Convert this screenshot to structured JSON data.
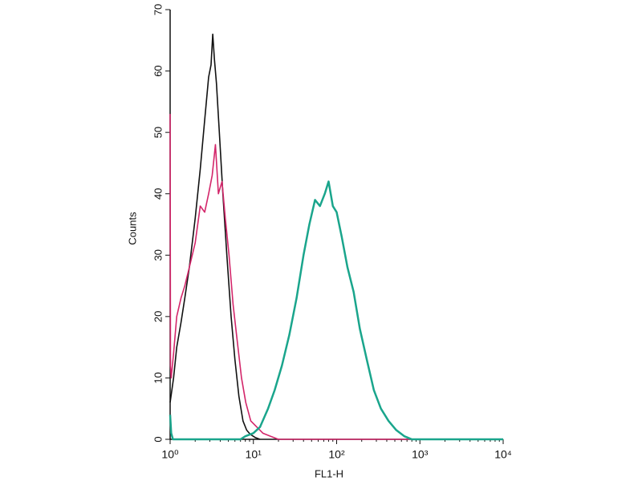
{
  "chart_data": {
    "type": "line",
    "xlabel": "FL1-H",
    "ylabel": "Counts",
    "xscale": "log",
    "xlim": [
      1,
      10000
    ],
    "xticks": [
      {
        "value": 1,
        "label": "10⁰"
      },
      {
        "value": 10,
        "label": "10¹"
      },
      {
        "value": 100,
        "label": "10²"
      },
      {
        "value": 1000,
        "label": "10³"
      },
      {
        "value": 10000,
        "label": "10⁴"
      }
    ],
    "ylim": [
      0,
      70
    ],
    "yticks": [
      0,
      10,
      20,
      30,
      40,
      50,
      60,
      70
    ],
    "grid": false,
    "series": [
      {
        "color": "#111111",
        "x": [
          1,
          1.1,
          1.2,
          1.35,
          1.5,
          1.7,
          2,
          2.3,
          2.6,
          2.9,
          3.1,
          3.25,
          3.4,
          3.6,
          3.9,
          4.3,
          4.8,
          5.4,
          6,
          6.7,
          7.5,
          8.3,
          9.2,
          10.5,
          12
        ],
        "values": [
          6,
          10,
          15,
          19,
          23,
          28,
          36,
          44,
          52,
          59,
          61,
          66,
          62,
          58,
          50,
          40,
          30,
          20,
          13,
          7,
          3,
          1.5,
          0.8,
          0.3,
          0
        ]
      },
      {
        "color": "#d3266a",
        "x": [
          1,
          1.01,
          1.03,
          1.1,
          1.2,
          1.35,
          1.5,
          1.7,
          2,
          2.3,
          2.6,
          2.9,
          3.2,
          3.5,
          3.8,
          4.2,
          4.6,
          5.1,
          5.7,
          6.4,
          7.2,
          8.1,
          9.3,
          11,
          13,
          16,
          20,
          10000
        ],
        "values": [
          53,
          12,
          10,
          14,
          20,
          23,
          25,
          28,
          32,
          38,
          37,
          40,
          43,
          48,
          40,
          42,
          36,
          30,
          22,
          16,
          10,
          6,
          3,
          2,
          1,
          0.5,
          0,
          0
        ]
      },
      {
        "color": "#1aa58c",
        "x": [
          1,
          1.03,
          1.08,
          7,
          8,
          10,
          12,
          15,
          18,
          22,
          27,
          33,
          40,
          47,
          55,
          63,
          72,
          80,
          90,
          100,
          115,
          135,
          160,
          190,
          230,
          280,
          340,
          420,
          520,
          650,
          800,
          10000
        ],
        "values": [
          4,
          1,
          0,
          0,
          0.5,
          1,
          2,
          5,
          8,
          12,
          17,
          23,
          30,
          35,
          39,
          38,
          40,
          42,
          38,
          37,
          33,
          28,
          24,
          18,
          13,
          8,
          5,
          3,
          1.5,
          0.5,
          0,
          0
        ]
      }
    ]
  }
}
